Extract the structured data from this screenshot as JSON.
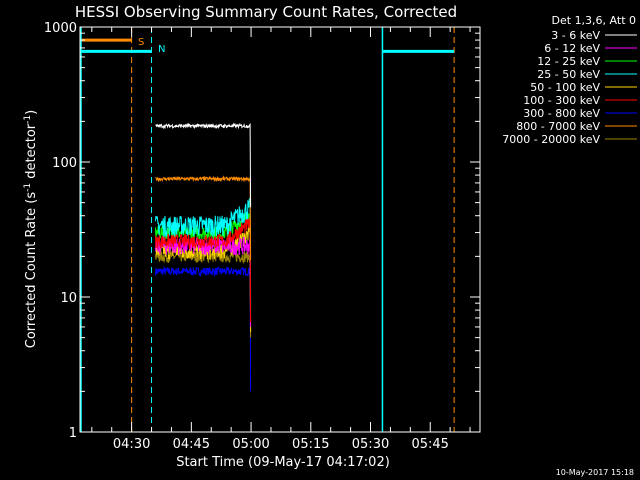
{
  "chart_data": {
    "type": "line",
    "title": "HESSI Observing Summary Count Rates, Corrected",
    "xlabel": "Start Time (09-May-17 04:17:02)",
    "ylabel_main": "Corrected Count Rate (s",
    "ylabel_sup1": "-1",
    "ylabel_mid": " detector",
    "ylabel_sup2": "-1",
    "ylabel_end": ")",
    "ylabel": "Corrected Count Rate (s-1 detector-1)",
    "y_scale": "log",
    "ylim": [
      1,
      1000
    ],
    "xlim": [
      "04:17:02",
      "05:57:30"
    ],
    "x_ticks": [
      "04:30",
      "04:45",
      "05:00",
      "05:15",
      "05:30",
      "05:45"
    ],
    "y_ticks": [
      "1",
      "10",
      "100",
      "1000"
    ],
    "legend_title": "Det 1,3,6, Att 0",
    "legend_position": "right",
    "date_stamp": "10-May-2017 15:18",
    "flag_s_label": "S",
    "flag_n_label": "N",
    "markers": [
      {
        "label": "S",
        "start": "04:17:02",
        "end": "04:30:00",
        "color": "#ff8c00",
        "level": 800
      },
      {
        "label": "N",
        "start": "04:17:02",
        "end": "04:35:00",
        "color": "#00ffff",
        "level": 660
      },
      {
        "label": "",
        "start": "05:33:00",
        "end": "05:51:00",
        "color": "#00ffff",
        "level": 660
      }
    ],
    "vlines": [
      {
        "time": "04:30:00",
        "color": "#ff8c00"
      },
      {
        "time": "04:35:00",
        "color": "#00ffff"
      },
      {
        "time": "05:33:00",
        "color": "#00ffff"
      },
      {
        "time": "05:51:00",
        "color": "#ff8c00"
      }
    ],
    "data_interval": [
      "04:36:00",
      "04:59:45"
    ],
    "series": [
      {
        "name": "3 - 6 keV",
        "color": "#ffffff",
        "level": 185
      },
      {
        "name": "6 - 12 keV",
        "color": "#ff00ff",
        "level": 24
      },
      {
        "name": "12 - 25 keV",
        "color": "#00ff00",
        "level": 30
      },
      {
        "name": "25 - 50 keV",
        "color": "#00ffff",
        "level": 34
      },
      {
        "name": "50 - 100 keV",
        "color": "#ffd700",
        "level": 22
      },
      {
        "name": "100 - 300 keV",
        "color": "#ff0000",
        "level": 26
      },
      {
        "name": "300 - 800 keV",
        "color": "#0000ff",
        "level": 15.5
      },
      {
        "name": "800 - 7000 keV",
        "color": "#ff8c00",
        "level": 75
      },
      {
        "name": "7000 - 20000 keV",
        "color": "#9b8500",
        "level": 20
      }
    ]
  }
}
